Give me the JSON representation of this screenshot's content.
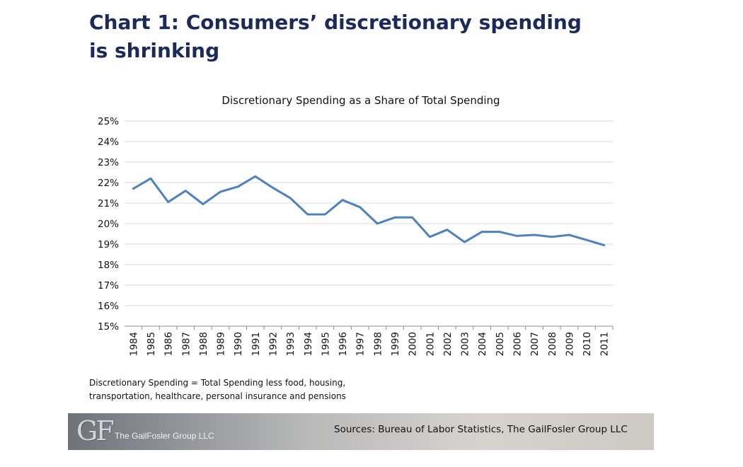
{
  "slide": {
    "title": "Chart 1: Consumers’ discretionary spending is shrinking",
    "footnote_line1": "Discretionary Spending = Total Spending less food, housing,",
    "footnote_line2": "transportation, healthcare, personal insurance and pensions",
    "footer": {
      "logo": "GF",
      "company": "The GailFosler Group LLC",
      "sources": "Sources: Bureau of Labor Statistics, The GailFosler Group LLC"
    }
  },
  "colors": {
    "line": "#4f81bd",
    "title": "#1b2a5a",
    "grid": "#d9d9d9"
  },
  "chart_data": {
    "type": "line",
    "title": "Discretionary Spending as a Share of Total Spending",
    "x": [
      "1984",
      "1985",
      "1986",
      "1987",
      "1988",
      "1989",
      "1990",
      "1991",
      "1992",
      "1993",
      "1994",
      "1995",
      "1996",
      "1997",
      "1998",
      "1999",
      "2000",
      "2001",
      "2002",
      "2003",
      "2004",
      "2005",
      "2006",
      "2007",
      "2008",
      "2009",
      "2010",
      "2011"
    ],
    "series": [
      {
        "values": [
          21.7,
          22.2,
          21.05,
          21.6,
          20.95,
          21.55,
          21.8,
          22.3,
          21.75,
          21.25,
          20.45,
          20.45,
          21.15,
          20.8,
          20.0,
          20.3,
          20.3,
          19.35,
          19.7,
          19.1,
          19.6,
          19.6,
          19.4,
          19.45,
          19.35,
          19.45,
          19.2,
          18.95
        ]
      }
    ],
    "ylim": [
      15,
      25
    ],
    "y_ticks": [
      "15%",
      "16%",
      "17%",
      "18%",
      "19%",
      "20%",
      "21%",
      "22%",
      "23%",
      "24%",
      "25%"
    ],
    "grid": true,
    "legend": "none"
  }
}
